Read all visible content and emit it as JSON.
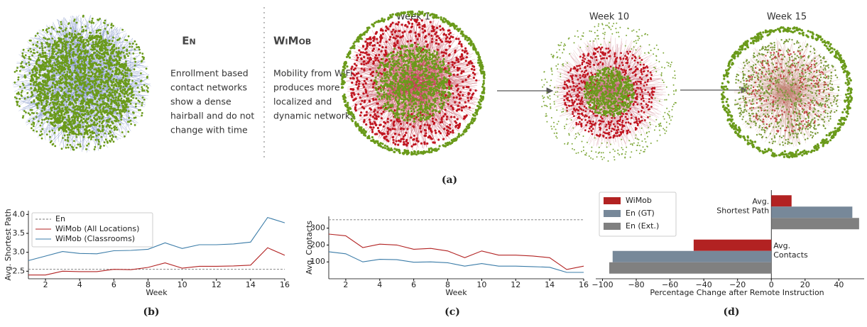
{
  "panel_a": {
    "en": {
      "title": "En",
      "text": [
        "Enrollment based",
        "contact networks",
        "show a dense",
        "hairball and do not",
        "change with time"
      ]
    },
    "wimob": {
      "title": "WiMob",
      "text": [
        "Mobility from WiFi",
        "produces more",
        "localized and",
        "dynamic networks"
      ]
    },
    "weeks": [
      "Week 1",
      "Week 10",
      "Week 15"
    ]
  },
  "captions": [
    "(a)",
    "(b)",
    "(c)",
    "(d)"
  ],
  "chart_data": [
    {
      "type": "line",
      "ylabel": "Avg. Shortest Path",
      "xlabel": "Week",
      "x": [
        1,
        2,
        3,
        4,
        5,
        6,
        7,
        8,
        9,
        10,
        11,
        12,
        13,
        14,
        15,
        16
      ],
      "xlim": [
        1,
        16
      ],
      "xticks": [
        2,
        4,
        6,
        8,
        10,
        12,
        14,
        16
      ],
      "ylim": [
        2.3,
        4.1
      ],
      "yticks": [
        2.5,
        {
          "value": 3,
          "label": "3.0"
        },
        3.5,
        {
          "value": 4,
          "label": "4.0"
        }
      ],
      "legend": "upper left",
      "series": [
        {
          "name": "En",
          "color": "#777777",
          "dash": true,
          "values": [
            2.55,
            2.55,
            2.55,
            2.55,
            2.55,
            2.55,
            2.55,
            2.55,
            2.55,
            2.55,
            2.55,
            2.55,
            2.55,
            2.55,
            2.55,
            2.55
          ]
        },
        {
          "name": "WiMob (All Locations)",
          "color": "#b22222",
          "values": [
            2.4,
            2.4,
            2.5,
            2.49,
            2.49,
            2.55,
            2.54,
            2.6,
            2.72,
            2.58,
            2.63,
            2.63,
            2.64,
            2.66,
            3.12,
            2.92
          ]
        },
        {
          "name": "WiMob (Classrooms)",
          "color": "#3b7ca8",
          "values": [
            2.78,
            2.9,
            3.02,
            2.97,
            2.96,
            3.04,
            3.05,
            3.08,
            3.25,
            3.1,
            3.2,
            3.2,
            3.22,
            3.27,
            3.92,
            3.78
          ]
        }
      ]
    },
    {
      "type": "line",
      "ylabel": "Avg. Contacts",
      "xlabel": "Week",
      "x": [
        1,
        2,
        3,
        4,
        5,
        6,
        7,
        8,
        9,
        10,
        11,
        12,
        13,
        14,
        15,
        16
      ],
      "xlim": [
        1,
        16
      ],
      "xticks": [
        2,
        4,
        6,
        8,
        10,
        12,
        14,
        16
      ],
      "ylim": [
        0,
        370
      ],
      "yticks": [
        100,
        200,
        300
      ],
      "series": [
        {
          "color": "#777777",
          "dash": true,
          "values": [
            350,
            350,
            350,
            350,
            350,
            350,
            350,
            350,
            350,
            350,
            350,
            350,
            350,
            350,
            350,
            350
          ]
        },
        {
          "color": "#b22222",
          "values": [
            265,
            255,
            185,
            205,
            200,
            175,
            180,
            165,
            125,
            165,
            140,
            140,
            135,
            125,
            55,
            75
          ]
        },
        {
          "color": "#3b7ca8",
          "values": [
            160,
            148,
            100,
            115,
            113,
            98,
            100,
            95,
            75,
            90,
            75,
            75,
            72,
            68,
            38,
            38
          ]
        }
      ]
    },
    {
      "type": "hbar",
      "xlabel": "Percentage Change after Remote Instruction",
      "categories": [
        [
          "Avg.",
          "Shortest Path"
        ],
        [
          "Avg.",
          "Contacts"
        ]
      ],
      "xlim": [
        -104,
        55
      ],
      "xticks": [
        {
          "value": -100,
          "label": "−100"
        },
        {
          "value": -80,
          "label": "−80"
        },
        {
          "value": -60,
          "label": "−60"
        },
        {
          "value": -40,
          "label": "−40"
        },
        {
          "value": -20,
          "label": "−20"
        },
        0,
        20,
        40
      ],
      "legend": "upper left",
      "series": [
        {
          "name": "WiMob",
          "color": "#b22222",
          "values": [
            12,
            -46
          ]
        },
        {
          "name": "En (GT)",
          "color": "#778899",
          "values": [
            48,
            -94
          ]
        },
        {
          "name": "En (Ext.)",
          "color": "#808080",
          "values": [
            52,
            -96
          ]
        }
      ]
    }
  ]
}
